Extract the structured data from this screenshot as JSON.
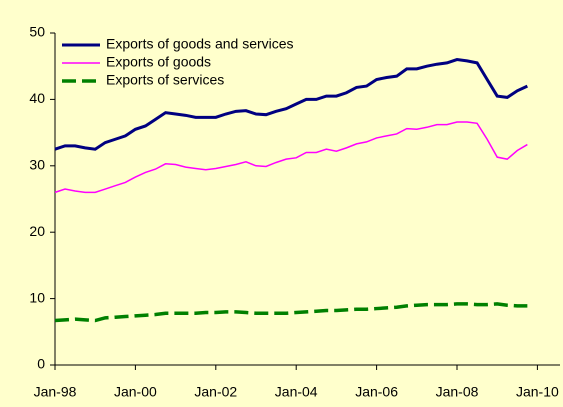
{
  "chart_data": {
    "type": "line",
    "categories": [
      "Jan-98",
      null,
      null,
      null,
      null,
      null,
      null,
      null,
      "Jan-00",
      null,
      null,
      null,
      null,
      null,
      null,
      null,
      "Jan-02",
      null,
      null,
      null,
      null,
      null,
      null,
      null,
      "Jan-04",
      null,
      null,
      null,
      null,
      null,
      null,
      null,
      "Jan-06",
      null,
      null,
      null,
      null,
      null,
      null,
      null,
      "Jan-08",
      null,
      null,
      null,
      null,
      null,
      null,
      null,
      "Jan-10"
    ],
    "series": [
      {
        "name": "Exports of goods and services",
        "color": "#000080",
        "dash": false,
        "values": [
          32.5,
          33,
          33,
          32.7,
          32.5,
          33.5,
          34,
          34.5,
          35.5,
          36,
          37,
          38,
          37.8,
          37.6,
          37.3,
          37.3,
          37.3,
          37.8,
          38.2,
          38.3,
          37.8,
          37.7,
          38.2,
          38.6,
          39.3,
          40,
          40,
          40.5,
          40.5,
          41,
          41.8,
          42,
          43,
          43.3,
          43.5,
          44.6,
          44.6,
          45,
          45.3,
          45.5,
          46,
          45.8,
          45.5,
          43,
          40.5,
          40.3,
          41.3,
          42,
          null
        ]
      },
      {
        "name": "Exports of goods",
        "color": "#ff00ff",
        "dash": false,
        "values": [
          26,
          26.5,
          26.2,
          26,
          26,
          26.5,
          27,
          27.5,
          28.3,
          29,
          29.5,
          30.3,
          30.2,
          29.8,
          29.6,
          29.4,
          29.6,
          29.9,
          30.2,
          30.6,
          30,
          29.9,
          30.5,
          31,
          31.2,
          32,
          32,
          32.5,
          32.2,
          32.7,
          33.3,
          33.6,
          34.2,
          34.5,
          34.8,
          35.6,
          35.5,
          35.8,
          36.2,
          36.2,
          36.6,
          36.6,
          36.4,
          34,
          31.3,
          31,
          32.3,
          33.2,
          null
        ]
      },
      {
        "name": "Exports of services",
        "color": "#008000",
        "dash": true,
        "values": [
          6.7,
          6.8,
          6.9,
          6.8,
          6.7,
          7.1,
          7.2,
          7.3,
          7.4,
          7.5,
          7.6,
          7.8,
          7.8,
          7.8,
          7.8,
          7.9,
          7.9,
          8.0,
          8.0,
          7.9,
          7.8,
          7.8,
          7.8,
          7.8,
          7.9,
          8.0,
          8.1,
          8.2,
          8.2,
          8.3,
          8.4,
          8.4,
          8.5,
          8.6,
          8.7,
          8.9,
          9.0,
          9.1,
          9.1,
          9.1,
          9.2,
          9.2,
          9.1,
          9.1,
          9.2,
          9.0,
          8.9,
          8.9,
          null
        ]
      }
    ],
    "ylim": [
      0,
      50
    ],
    "yticks": [
      0,
      10,
      20,
      30,
      40,
      50
    ],
    "grid": false,
    "legend": "top-left"
  }
}
